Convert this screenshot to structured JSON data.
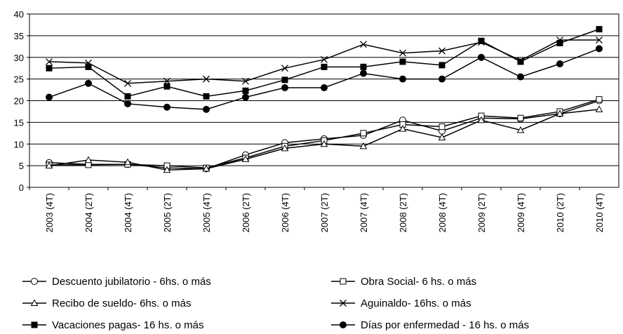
{
  "chart_data": {
    "type": "line",
    "categories": [
      "2003 (4T)",
      "2004 (2T)",
      "2004 (4T)",
      "2005 (2T)",
      "2005 (4T)",
      "2006 (2T)",
      "2006 (4T)",
      "2007 (2T)",
      "2007 (4T)",
      "2008 (2T)",
      "2008 (4T)",
      "2009 (2T)",
      "2009 (4T)",
      "2010 (2T)",
      "2010 (4T)"
    ],
    "series": [
      {
        "name": "Descuento jubilatorio - 6hs. o más",
        "color": "#000000",
        "marker": "circle-open",
        "values": [
          5.7,
          5.3,
          5.3,
          4.5,
          4.3,
          7.5,
          10.3,
          11.2,
          12.0,
          15.5,
          13.0,
          16.0,
          15.8,
          17.0,
          20.0
        ]
      },
      {
        "name": "Obra Social- 6 hs. o más",
        "color": "#000000",
        "marker": "square-open",
        "values": [
          5.2,
          5.2,
          5.3,
          5.0,
          4.5,
          6.8,
          9.5,
          10.8,
          12.5,
          14.5,
          14.0,
          16.5,
          16.0,
          17.5,
          20.3
        ]
      },
      {
        "name": "Recibo de sueldo- 6hs. o más",
        "color": "#000000",
        "marker": "triangle-open",
        "values": [
          5.0,
          6.3,
          5.8,
          4.0,
          4.3,
          6.5,
          9.0,
          10.0,
          9.5,
          13.5,
          11.5,
          15.5,
          13.2,
          17.0,
          18.0
        ]
      },
      {
        "name": "Aguinaldo- 16hs. o más",
        "color": "#000000",
        "marker": "x",
        "values": [
          29.0,
          28.7,
          24.0,
          24.5,
          25.0,
          24.5,
          27.5,
          29.5,
          33.0,
          31.0,
          31.5,
          33.5,
          29.3,
          34.0,
          34.0
        ]
      },
      {
        "name": "Vacaciones pagas- 16 hs. o más",
        "color": "#000000",
        "marker": "square-filled",
        "values": [
          27.5,
          27.8,
          21.0,
          23.3,
          21.0,
          22.3,
          24.8,
          27.8,
          27.8,
          29.0,
          28.2,
          33.8,
          29.0,
          33.3,
          36.5
        ]
      },
      {
        "name": "Días por enfermedad - 16 hs. o más",
        "color": "#000000",
        "marker": "circle-filled",
        "values": [
          20.8,
          24.0,
          19.3,
          18.5,
          18.0,
          20.8,
          23.0,
          23.0,
          26.3,
          25.0,
          25.0,
          30.0,
          25.5,
          28.5,
          32.0
        ]
      }
    ],
    "ylim": [
      0,
      40
    ],
    "yticks": [
      0,
      5,
      10,
      15,
      20,
      25,
      30,
      35,
      40
    ],
    "grid": true
  }
}
